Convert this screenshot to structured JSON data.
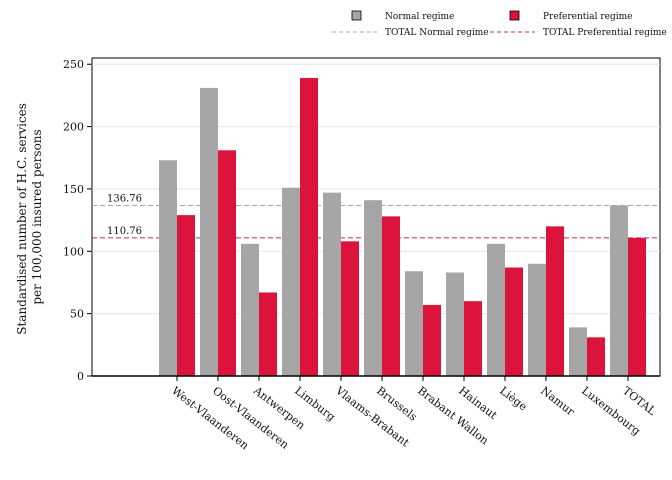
{
  "chart_data": {
    "type": "bar",
    "ylabel_lines": [
      "Standardised number of H.C. services",
      "per 100,000 insured persons"
    ],
    "categories": [
      "West-Vlaanderen",
      "Oost-Vlaanderen",
      "Antwerpen",
      "Limburg",
      "Vlaams-Brabant",
      "Brussels",
      "Brabant Wallon",
      "Hainaut",
      "Liège",
      "Namur",
      "Luxembourg",
      "TOTAL"
    ],
    "series": [
      {
        "name": "Normal regime",
        "color": "#a6a6a6",
        "values": [
          173,
          231,
          106,
          151,
          147,
          141,
          84,
          83,
          106,
          90,
          39,
          136.76
        ]
      },
      {
        "name": "Preferential regime",
        "color": "#dc143c",
        "values": [
          129,
          181,
          67,
          239,
          108,
          128,
          57,
          60,
          87,
          120,
          31,
          110.76
        ]
      }
    ],
    "reference_lines": [
      {
        "name": "TOTAL Normal regime",
        "value": 136.76,
        "label": "136.76",
        "color": "#a6a6a6"
      },
      {
        "name": "TOTAL Preferential regime",
        "value": 110.76,
        "label": "110.76",
        "color": "#c0304f"
      }
    ],
    "yticks": [
      "0",
      "50",
      "100",
      "150",
      "200",
      "250"
    ],
    "ylim": [
      0,
      255
    ],
    "grid": true,
    "legend_position": "top-right"
  }
}
